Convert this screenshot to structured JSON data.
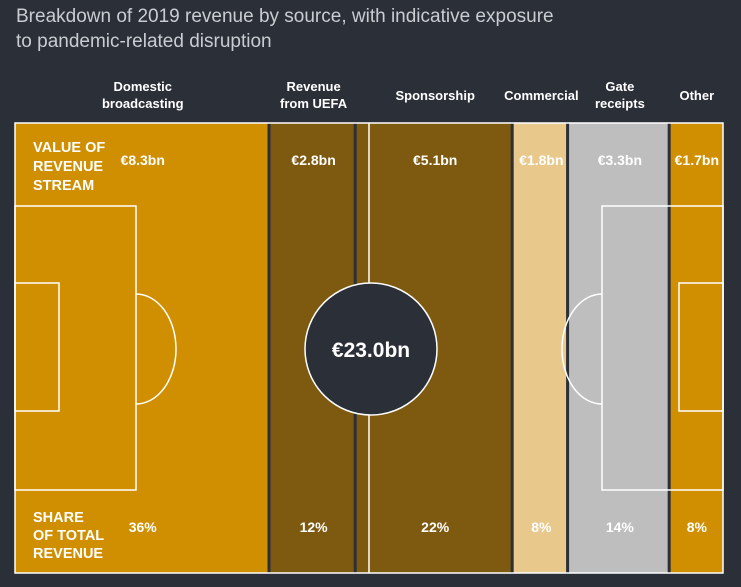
{
  "title_lines": [
    "Breakdown of 2019 revenue by source, with indicative exposure",
    "to pandemic-related disruption"
  ],
  "row_labels": {
    "value": [
      "VALUE OF",
      "REVENUE",
      "STREAM"
    ],
    "share": [
      "SHARE",
      "OF TOTAL",
      "REVENUE"
    ]
  },
  "total_label": "€23.0bn",
  "colors": {
    "background": "#2b2f38",
    "pitch_lines": "#ffffff"
  },
  "chart_data": {
    "type": "bar",
    "categories": [
      [
        "Domestic",
        "broadcasting"
      ],
      [
        "Revenue",
        "from UEFA"
      ],
      [
        "Sponsorship"
      ],
      [
        "Commercial"
      ],
      [
        "Gate",
        "receipts"
      ],
      [
        "Other"
      ]
    ],
    "values": [
      8.3,
      2.8,
      5.1,
      1.8,
      3.3,
      1.7
    ],
    "value_labels": [
      "€8.3bn",
      "€2.8bn",
      "€5.1bn",
      "€1.8bn",
      "€3.3bn",
      "€1.7bn"
    ],
    "share_labels": [
      "36%",
      "12%",
      "22%",
      "8%",
      "14%",
      "8%"
    ],
    "total": 23.0,
    "colors": [
      "#cf8f00",
      "#7e5910",
      "#7e5910",
      "#e9c88c",
      "#bebebe",
      "#cf8f00"
    ]
  }
}
